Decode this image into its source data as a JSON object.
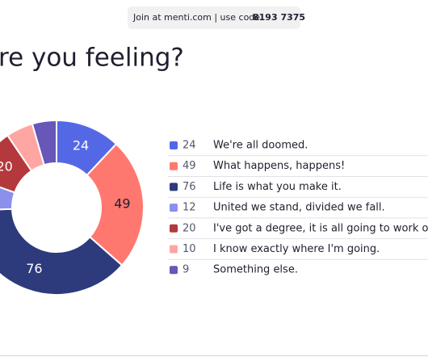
{
  "header": {
    "join_text": "Join at menti.com | use code",
    "code": "8193 7375"
  },
  "chart_data": {
    "type": "donut",
    "title": "re you feeling?",
    "categories": [
      "We're all doomed.",
      "What happens, happens!",
      "Life is what you make it.",
      "United we stand, divided we fall.",
      "I've got a degree, it is all going to work out.",
      "I know exactly where I'm going.",
      "Something else."
    ],
    "values": [
      24,
      49,
      76,
      12,
      20,
      10,
      9
    ],
    "colors": [
      "#5468e6",
      "#ff7870",
      "#2d3a7c",
      "#8b90ec",
      "#b3393c",
      "#ffa6a3",
      "#6657b8"
    ],
    "legend": "right"
  }
}
